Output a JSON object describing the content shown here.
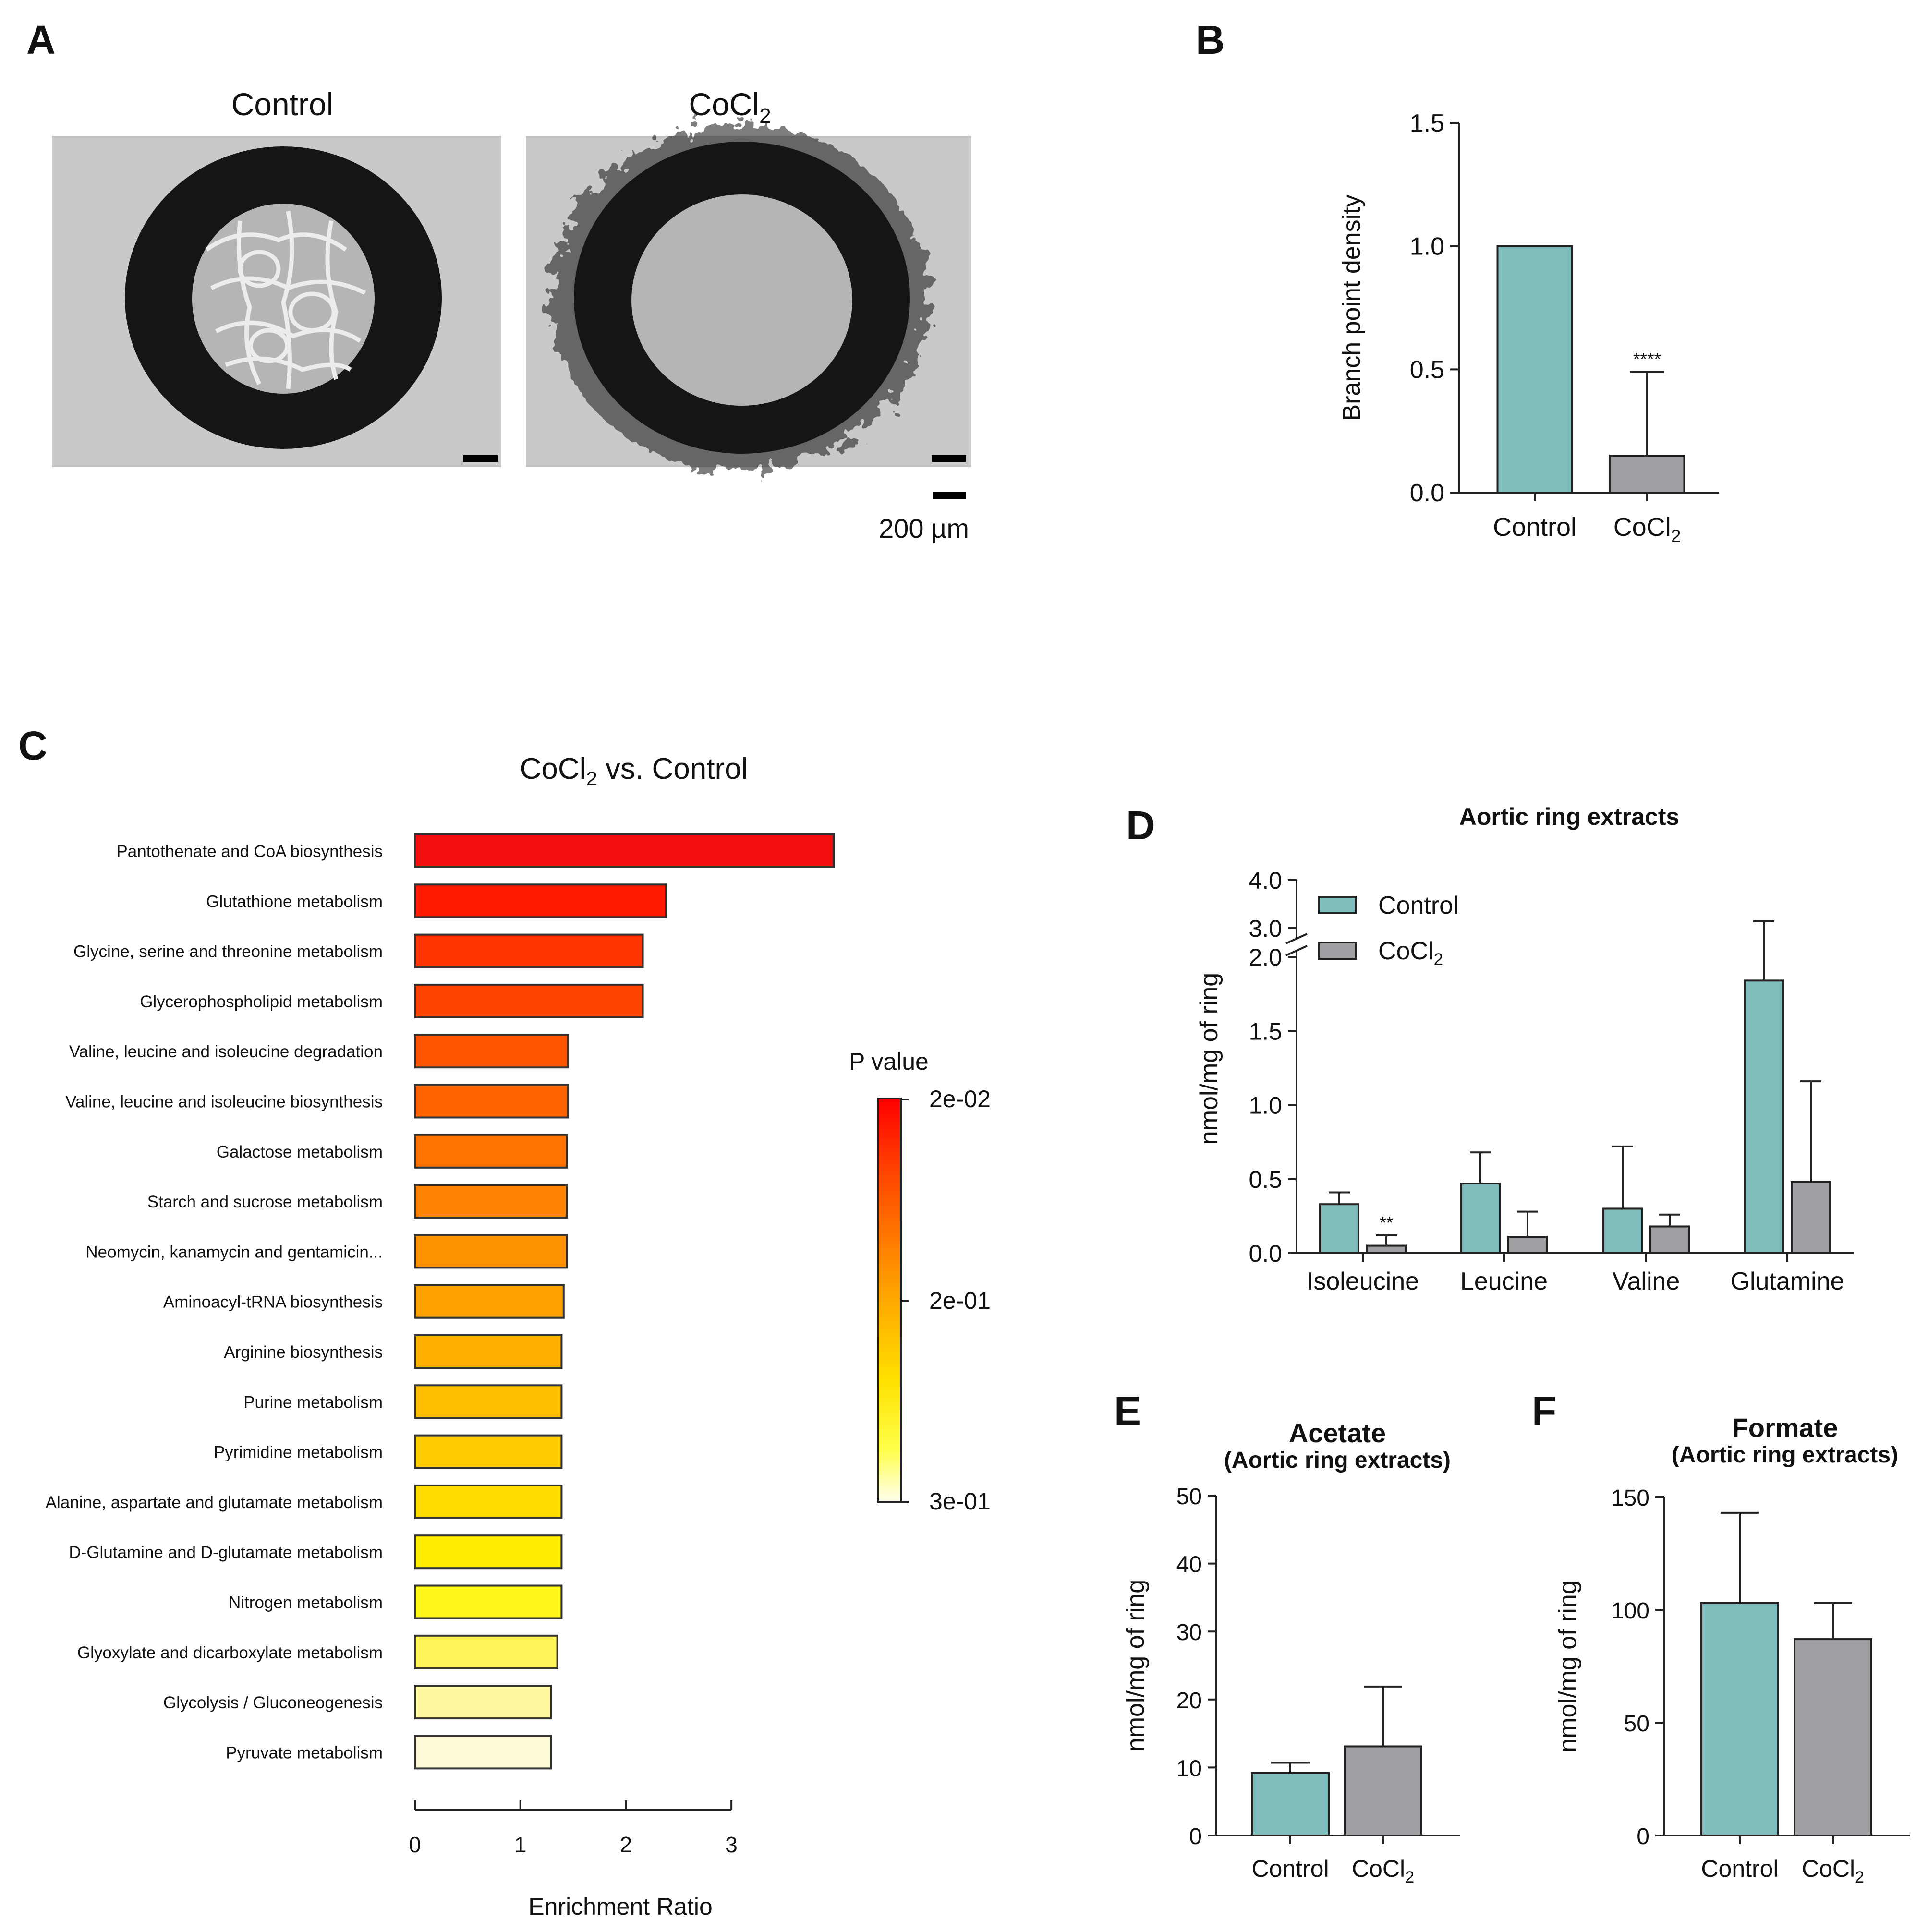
{
  "colors": {
    "control": "#7fbcbc",
    "cocl2": "#a0a0a4",
    "axis": "#222222",
    "micro_bg": "#c9c9c9",
    "micro_ring": "#151515",
    "micro_lumen": "#b5b5b5",
    "micro_vessel": "#ececec"
  },
  "panels": {
    "A": {
      "letter": "A",
      "images": [
        {
          "title": "Control",
          "kind": "sprouting"
        },
        {
          "title_main": "CoCl",
          "title_sub": "2",
          "kind": "no-sprouting"
        }
      ],
      "scalebar_label": "200 µm"
    },
    "B": {
      "letter": "B"
    },
    "C": {
      "letter": "C",
      "title_main": "CoCl",
      "title_sub": "2",
      "title_rest": " vs. Control",
      "legend_title": "P value",
      "legend_ticks": [
        "2e-02",
        "2e-01",
        "3e-01"
      ]
    },
    "D": {
      "letter": "D"
    },
    "E": {
      "letter": "E"
    },
    "F": {
      "letter": "F"
    }
  },
  "chart_data": [
    {
      "id": "B",
      "type": "bar",
      "title": "",
      "xlabel": "",
      "ylabel": "Branch point density",
      "ylim": [
        0,
        1.5
      ],
      "yticks": [
        "0.0",
        "0.5",
        "1.0",
        "1.5"
      ],
      "categories": [
        {
          "main": "Control",
          "sub": ""
        },
        {
          "main": "CoCl",
          "sub": "2"
        }
      ],
      "values": [
        1.0,
        0.15
      ],
      "errors": [
        0,
        0.34
      ],
      "annotations": [
        "",
        "****"
      ]
    },
    {
      "id": "C",
      "type": "bar",
      "orientation": "horizontal",
      "xlabel": "Enrichment Ratio",
      "xlim": [
        0,
        3
      ],
      "xticks": [
        "0",
        "1",
        "2",
        "3"
      ],
      "pathways": [
        {
          "name": "Pantothenate and CoA biosynthesis",
          "ratio": 3.97,
          "p": 0.02,
          "color": "#f40f0f"
        },
        {
          "name": "Glutathione metabolism",
          "ratio": 2.38,
          "p": 0.03,
          "color": "#ff1a00"
        },
        {
          "name": "Glycine, serine and threonine metabolism",
          "ratio": 2.16,
          "p": 0.04,
          "color": "#ff3300"
        },
        {
          "name": "Glycerophospholipid metabolism",
          "ratio": 2.16,
          "p": 0.05,
          "color": "#ff4400"
        },
        {
          "name": "Valine, leucine and isoleucine degradation",
          "ratio": 1.45,
          "p": 0.07,
          "color": "#ff5500"
        },
        {
          "name": "Valine, leucine and isoleucine biosynthesis",
          "ratio": 1.45,
          "p": 0.08,
          "color": "#ff6400"
        },
        {
          "name": "Galactose metabolism",
          "ratio": 1.44,
          "p": 0.1,
          "color": "#ff7300"
        },
        {
          "name": "Starch and sucrose metabolism",
          "ratio": 1.44,
          "p": 0.12,
          "color": "#ff8200"
        },
        {
          "name": "Neomycin, kanamycin and gentamicin...",
          "ratio": 1.44,
          "p": 0.15,
          "color": "#ff9200"
        },
        {
          "name": "Aminoacyl-tRNA biosynthesis",
          "ratio": 1.41,
          "p": 0.17,
          "color": "#ffa100"
        },
        {
          "name": "Arginine biosynthesis",
          "ratio": 1.39,
          "p": 0.19,
          "color": "#ffb100"
        },
        {
          "name": "Purine metabolism",
          "ratio": 1.39,
          "p": 0.2,
          "color": "#ffbf00"
        },
        {
          "name": "Pyrimidine metabolism",
          "ratio": 1.39,
          "p": 0.22,
          "color": "#ffcd00"
        },
        {
          "name": "Alanine, aspartate and glutamate metabolism",
          "ratio": 1.39,
          "p": 0.23,
          "color": "#ffdc00"
        },
        {
          "name": "D-Glutamine and D-glutamate metabolism",
          "ratio": 1.39,
          "p": 0.24,
          "color": "#ffec00"
        },
        {
          "name": "Nitrogen metabolism",
          "ratio": 1.39,
          "p": 0.25,
          "color": "#fff61a"
        },
        {
          "name": "Glyoxylate and dicarboxylate metabolism",
          "ratio": 1.35,
          "p": 0.27,
          "color": "#fff45a"
        },
        {
          "name": "Glycolysis / Gluconeogenesis",
          "ratio": 1.29,
          "p": 0.29,
          "color": "#fff7a0"
        },
        {
          "name": "Pyruvate metabolism",
          "ratio": 1.29,
          "p": 0.3,
          "color": "#fffbd8"
        }
      ]
    },
    {
      "id": "D",
      "type": "bar",
      "title": "Aortic ring extracts",
      "ylabel": "nmol/mg of ring",
      "ylim": [
        0,
        4.0
      ],
      "axis_break": [
        2.0,
        3.0
      ],
      "yticks_low": [
        "0.0",
        "0.5",
        "1.0",
        "1.5",
        "2.0"
      ],
      "yticks_high": [
        "3.0",
        "4.0"
      ],
      "categories": [
        "Isoleucine",
        "Leucine",
        "Valine",
        "Glutamine"
      ],
      "series": [
        {
          "name_main": "Control",
          "name_sub": "",
          "values": [
            0.33,
            0.47,
            0.3,
            1.84
          ],
          "errors": [
            0.08,
            0.21,
            0.42,
            1.3
          ]
        },
        {
          "name_main": "CoCl",
          "name_sub": "2",
          "values": [
            0.05,
            0.11,
            0.18,
            0.48
          ],
          "errors": [
            0.07,
            0.17,
            0.08,
            0.68
          ]
        }
      ],
      "annotations": [
        {
          "category": "Isoleucine",
          "series": 1,
          "text": "**"
        }
      ]
    },
    {
      "id": "E",
      "type": "bar",
      "title": "Acetate",
      "subtitle": "(Aortic ring extracts)",
      "ylabel": "nmol/mg of ring",
      "ylim": [
        0,
        50
      ],
      "yticks": [
        "0",
        "10",
        "20",
        "30",
        "40",
        "50"
      ],
      "categories": [
        {
          "main": "Control",
          "sub": ""
        },
        {
          "main": "CoCl",
          "sub": "2"
        }
      ],
      "values": [
        9.2,
        13.1
      ],
      "errors": [
        1.5,
        8.8
      ]
    },
    {
      "id": "F",
      "type": "bar",
      "title": "Formate",
      "subtitle": "(Aortic ring extracts)",
      "ylabel": "nmol/mg of ring",
      "ylim": [
        0,
        150
      ],
      "yticks": [
        "0",
        "50",
        "100",
        "150"
      ],
      "categories": [
        {
          "main": "Control",
          "sub": ""
        },
        {
          "main": "CoCl",
          "sub": "2"
        }
      ],
      "values": [
        103,
        87
      ],
      "errors": [
        40,
        16
      ]
    }
  ]
}
